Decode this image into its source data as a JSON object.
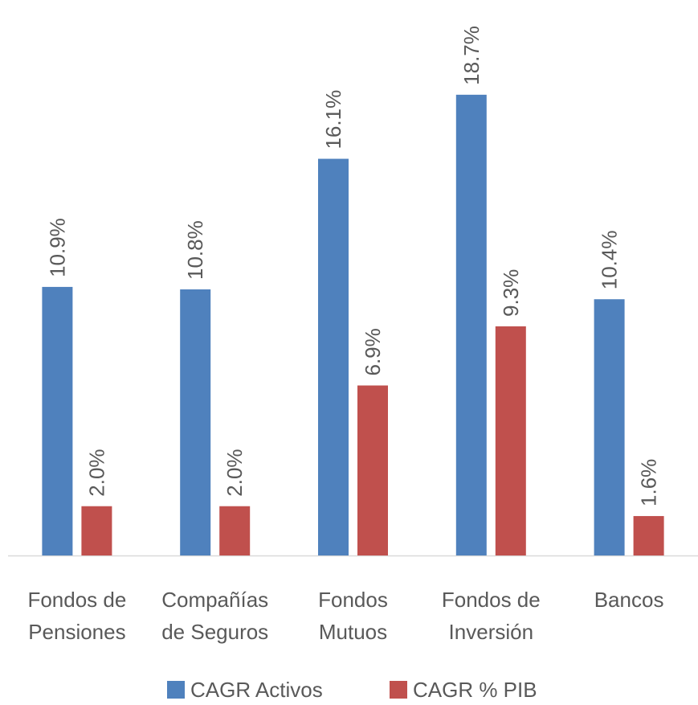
{
  "chart_data": {
    "type": "bar",
    "categories": [
      [
        "Fondos de",
        "Pensiones"
      ],
      [
        "Compañías",
        "de Seguros"
      ],
      [
        "Fondos",
        "Mutuos"
      ],
      [
        "Fondos de",
        "Inversión"
      ],
      [
        "Bancos"
      ]
    ],
    "series": [
      {
        "name": "CAGR Activos",
        "color": "#4f81bd",
        "values": [
          10.9,
          10.8,
          16.1,
          18.7,
          10.4
        ],
        "value_labels": [
          "10.9%",
          "10.8%",
          "16.1%",
          "18.7%",
          "10.4%"
        ]
      },
      {
        "name": "CAGR % PIB",
        "color": "#c0504d",
        "values": [
          2.0,
          2.0,
          6.9,
          9.3,
          1.6
        ],
        "value_labels": [
          "2.0%",
          "2.0%",
          "6.9%",
          "9.3%",
          "1.6%"
        ]
      }
    ],
    "legend": "bottom"
  }
}
